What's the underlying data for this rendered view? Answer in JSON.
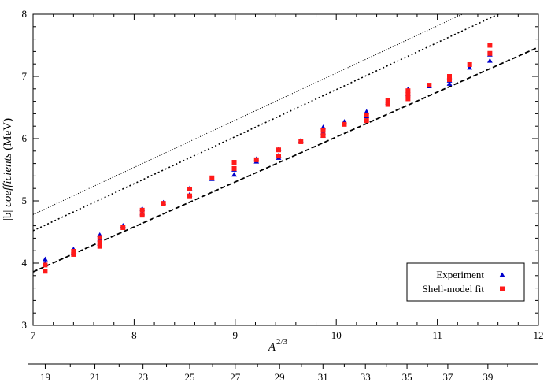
{
  "chart_data": {
    "type": "scatter",
    "title": "",
    "xlabel": "A",
    "xlabel_sup": "2/3",
    "ylabel_prefix": "|b| ",
    "ylabel_italic": "coefficients",
    "ylabel_suffix": " (MeV)",
    "xlim": [
      7,
      12
    ],
    "ylim": [
      3,
      8
    ],
    "xticks": [
      7,
      8,
      9,
      10,
      11,
      12
    ],
    "yticks": [
      3,
      4,
      5,
      6,
      7,
      8
    ],
    "secondary_axis_ticks": [
      "19",
      "21",
      "23",
      "25",
      "27",
      "29",
      "31",
      "33",
      "35",
      "37",
      "39"
    ],
    "grid": false,
    "legend_position": "bottom-right",
    "series": [
      {
        "name": "Experiment",
        "marker": "triangle",
        "color": "#0000cc",
        "points": [
          [
            7.12,
            4.06
          ],
          [
            7.12,
            4.0
          ],
          [
            7.4,
            4.22
          ],
          [
            7.4,
            4.16
          ],
          [
            7.66,
            4.45
          ],
          [
            7.66,
            4.38
          ],
          [
            7.66,
            4.31
          ],
          [
            7.89,
            4.6
          ],
          [
            8.08,
            4.87
          ],
          [
            8.08,
            4.8
          ],
          [
            8.29,
            4.97
          ],
          [
            8.55,
            5.2
          ],
          [
            8.55,
            5.1
          ],
          [
            8.77,
            5.35
          ],
          [
            8.99,
            5.6
          ],
          [
            8.99,
            5.5
          ],
          [
            8.99,
            5.42
          ],
          [
            9.21,
            5.67
          ],
          [
            9.21,
            5.63
          ],
          [
            9.43,
            5.83
          ],
          [
            9.43,
            5.73
          ],
          [
            9.43,
            5.69
          ],
          [
            9.65,
            5.97
          ],
          [
            9.87,
            6.18
          ],
          [
            9.87,
            6.1
          ],
          [
            9.87,
            6.05
          ],
          [
            10.08,
            6.27
          ],
          [
            10.3,
            6.43
          ],
          [
            10.3,
            6.36
          ],
          [
            10.3,
            6.31
          ],
          [
            10.51,
            6.58
          ],
          [
            10.71,
            6.79
          ],
          [
            10.71,
            6.72
          ],
          [
            10.71,
            6.68
          ],
          [
            10.92,
            6.84
          ],
          [
            11.12,
            6.99
          ],
          [
            11.12,
            6.93
          ],
          [
            11.12,
            6.88
          ],
          [
            11.32,
            7.14
          ],
          [
            11.52,
            7.35
          ],
          [
            11.52,
            7.25
          ]
        ]
      },
      {
        "name": "Shell-model fit",
        "marker": "square",
        "color": "#ff1a1a",
        "points": [
          [
            7.12,
            3.97
          ],
          [
            7.12,
            3.87
          ],
          [
            7.4,
            4.19
          ],
          [
            7.4,
            4.14
          ],
          [
            7.66,
            4.41
          ],
          [
            7.66,
            4.33
          ],
          [
            7.66,
            4.27
          ],
          [
            7.89,
            4.57
          ],
          [
            8.08,
            4.85
          ],
          [
            8.08,
            4.77
          ],
          [
            8.29,
            4.96
          ],
          [
            8.55,
            5.19
          ],
          [
            8.55,
            5.08
          ],
          [
            8.77,
            5.37
          ],
          [
            8.99,
            5.62
          ],
          [
            8.99,
            5.52
          ],
          [
            9.21,
            5.66
          ],
          [
            9.43,
            5.82
          ],
          [
            9.43,
            5.72
          ],
          [
            9.65,
            5.95
          ],
          [
            9.87,
            6.13
          ],
          [
            9.87,
            6.05
          ],
          [
            10.08,
            6.23
          ],
          [
            10.3,
            6.38
          ],
          [
            10.3,
            6.29
          ],
          [
            10.51,
            6.61
          ],
          [
            10.51,
            6.55
          ],
          [
            10.71,
            6.77
          ],
          [
            10.71,
            6.71
          ],
          [
            10.71,
            6.64
          ],
          [
            10.92,
            6.86
          ],
          [
            11.12,
            7.0
          ],
          [
            11.12,
            6.95
          ],
          [
            11.32,
            7.19
          ],
          [
            11.52,
            7.5
          ],
          [
            11.52,
            7.37
          ]
        ]
      }
    ],
    "reference_lines": [
      {
        "style": "dotted-fine",
        "x": [
          7,
          12
        ],
        "y": [
          4.78,
          8.57
        ]
      },
      {
        "style": "dotted",
        "x": [
          7,
          12
        ],
        "y": [
          4.52,
          8.3
        ]
      },
      {
        "style": "dashed",
        "x": [
          7,
          12
        ],
        "y": [
          3.86,
          7.47
        ]
      }
    ]
  }
}
